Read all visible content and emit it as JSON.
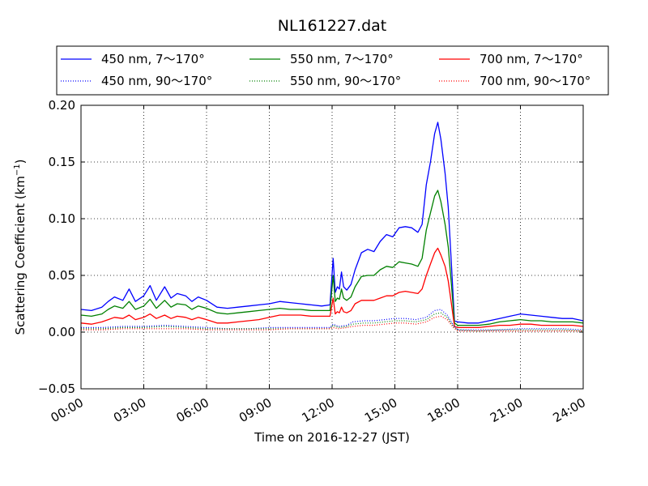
{
  "chart_data": {
    "type": "line",
    "title": "NL161227.dat",
    "xlabel": "Time on 2016-12-27 (JST)",
    "ylabel": "Scattering Coefficient (km",
    "ylabel_sup": "−1",
    "ylabel_close": ")",
    "xlim": [
      0,
      24
    ],
    "ylim": [
      -0.05,
      0.2
    ],
    "x_ticks": [
      0,
      3,
      6,
      9,
      12,
      15,
      18,
      21,
      24
    ],
    "x_tick_labels": [
      "00:00",
      "03:00",
      "06:00",
      "09:00",
      "12:00",
      "15:00",
      "18:00",
      "21:00",
      "24:00"
    ],
    "y_ticks": [
      -0.05,
      0,
      0.05,
      0.1,
      0.15,
      0.2
    ],
    "y_tick_labels": [
      "−0.05",
      "0.00",
      "0.05",
      "0.10",
      "0.15",
      "0.20"
    ],
    "grid": true,
    "legend_position": "top",
    "legend_columns": 3,
    "series": [
      {
        "name": "450 nm, 7～170°",
        "color": "#0000ff",
        "style": "solid",
        "x": [
          0,
          0.5,
          1,
          1.3,
          1.6,
          2,
          2.3,
          2.6,
          3,
          3.3,
          3.6,
          4,
          4.3,
          4.6,
          5,
          5.3,
          5.6,
          6,
          6.5,
          7,
          7.5,
          8,
          8.5,
          9,
          9.5,
          10,
          10.5,
          11,
          11.5,
          11.9,
          12.05,
          12.15,
          12.25,
          12.35,
          12.45,
          12.55,
          12.7,
          12.9,
          13.1,
          13.4,
          13.7,
          14,
          14.3,
          14.6,
          14.9,
          15.2,
          15.5,
          15.8,
          16.1,
          16.3,
          16.5,
          16.7,
          16.9,
          17.05,
          17.2,
          17.4,
          17.55,
          17.7,
          17.85,
          18,
          18.5,
          19,
          19.5,
          20,
          20.5,
          21,
          21.5,
          22,
          22.5,
          23,
          23.5,
          24
        ],
        "y": [
          0.02,
          0.019,
          0.022,
          0.027,
          0.031,
          0.028,
          0.038,
          0.027,
          0.032,
          0.041,
          0.028,
          0.04,
          0.03,
          0.034,
          0.032,
          0.027,
          0.031,
          0.028,
          0.022,
          0.021,
          0.022,
          0.023,
          0.024,
          0.025,
          0.027,
          0.026,
          0.025,
          0.024,
          0.023,
          0.024,
          0.065,
          0.035,
          0.04,
          0.038,
          0.053,
          0.04,
          0.037,
          0.042,
          0.055,
          0.07,
          0.073,
          0.071,
          0.08,
          0.086,
          0.084,
          0.092,
          0.093,
          0.092,
          0.088,
          0.095,
          0.13,
          0.15,
          0.175,
          0.185,
          0.17,
          0.14,
          0.11,
          0.06,
          0.01,
          0.009,
          0.008,
          0.008,
          0.01,
          0.012,
          0.014,
          0.016,
          0.015,
          0.014,
          0.013,
          0.012,
          0.012,
          0.01
        ]
      },
      {
        "name": "550 nm, 7～170°",
        "color": "#008000",
        "style": "solid",
        "x": [
          0,
          0.5,
          1,
          1.3,
          1.6,
          2,
          2.3,
          2.6,
          3,
          3.3,
          3.6,
          4,
          4.3,
          4.6,
          5,
          5.3,
          5.6,
          6,
          6.5,
          7,
          7.5,
          8,
          8.5,
          9,
          9.5,
          10,
          10.5,
          11,
          11.5,
          11.9,
          12.05,
          12.15,
          12.25,
          12.35,
          12.45,
          12.55,
          12.7,
          12.9,
          13.1,
          13.4,
          13.7,
          14,
          14.3,
          14.6,
          14.9,
          15.2,
          15.5,
          15.8,
          16.1,
          16.3,
          16.5,
          16.7,
          16.9,
          17.05,
          17.2,
          17.4,
          17.55,
          17.7,
          17.85,
          18,
          18.5,
          19,
          19.5,
          20,
          20.5,
          21,
          21.5,
          22,
          22.5,
          23,
          23.5,
          24
        ],
        "y": [
          0.015,
          0.014,
          0.016,
          0.02,
          0.023,
          0.021,
          0.027,
          0.02,
          0.023,
          0.029,
          0.021,
          0.028,
          0.022,
          0.025,
          0.024,
          0.02,
          0.023,
          0.021,
          0.017,
          0.016,
          0.017,
          0.018,
          0.019,
          0.02,
          0.021,
          0.02,
          0.02,
          0.019,
          0.019,
          0.019,
          0.05,
          0.027,
          0.03,
          0.029,
          0.038,
          0.03,
          0.028,
          0.031,
          0.04,
          0.049,
          0.05,
          0.05,
          0.055,
          0.058,
          0.057,
          0.062,
          0.061,
          0.06,
          0.058,
          0.065,
          0.09,
          0.105,
          0.12,
          0.125,
          0.115,
          0.095,
          0.075,
          0.042,
          0.008,
          0.006,
          0.006,
          0.006,
          0.007,
          0.009,
          0.01,
          0.011,
          0.01,
          0.01,
          0.009,
          0.009,
          0.009,
          0.008
        ]
      },
      {
        "name": "700 nm, 7～170°",
        "color": "#ff0000",
        "style": "solid",
        "x": [
          0,
          0.5,
          1,
          1.3,
          1.6,
          2,
          2.3,
          2.6,
          3,
          3.3,
          3.6,
          4,
          4.3,
          4.6,
          5,
          5.3,
          5.6,
          6,
          6.5,
          7,
          7.5,
          8,
          8.5,
          9,
          9.5,
          10,
          10.5,
          11,
          11.5,
          11.9,
          12.05,
          12.15,
          12.25,
          12.35,
          12.45,
          12.55,
          12.7,
          12.9,
          13.1,
          13.4,
          13.7,
          14,
          14.3,
          14.6,
          14.9,
          15.2,
          15.5,
          15.8,
          16.1,
          16.3,
          16.5,
          16.7,
          16.9,
          17.05,
          17.2,
          17.4,
          17.55,
          17.7,
          17.85,
          18,
          18.5,
          19,
          19.5,
          20,
          20.5,
          21,
          21.5,
          22,
          22.5,
          23,
          23.5,
          24
        ],
        "y": [
          0.008,
          0.007,
          0.009,
          0.011,
          0.013,
          0.012,
          0.015,
          0.011,
          0.013,
          0.016,
          0.012,
          0.015,
          0.012,
          0.014,
          0.013,
          0.011,
          0.013,
          0.011,
          0.008,
          0.008,
          0.009,
          0.01,
          0.011,
          0.013,
          0.015,
          0.015,
          0.015,
          0.014,
          0.014,
          0.014,
          0.03,
          0.016,
          0.018,
          0.017,
          0.022,
          0.018,
          0.017,
          0.019,
          0.025,
          0.028,
          0.028,
          0.028,
          0.03,
          0.032,
          0.032,
          0.035,
          0.036,
          0.035,
          0.034,
          0.038,
          0.05,
          0.06,
          0.07,
          0.074,
          0.068,
          0.058,
          0.045,
          0.025,
          0.005,
          0.004,
          0.004,
          0.004,
          0.005,
          0.006,
          0.006,
          0.007,
          0.007,
          0.006,
          0.006,
          0.006,
          0.006,
          0.005
        ]
      },
      {
        "name": "450 nm, 90～170°",
        "color": "#0000ff",
        "style": "dotted",
        "x": [
          0,
          1,
          2,
          3,
          4,
          5,
          6,
          7,
          8,
          9,
          10,
          11,
          11.9,
          12.05,
          12.3,
          12.7,
          13,
          13.5,
          14,
          14.5,
          15,
          15.5,
          16,
          16.5,
          16.9,
          17.2,
          17.5,
          17.8,
          18,
          19,
          20,
          21,
          22,
          23,
          24
        ],
        "y": [
          0.004,
          0.004,
          0.005,
          0.005,
          0.006,
          0.005,
          0.004,
          0.003,
          0.003,
          0.004,
          0.004,
          0.004,
          0.004,
          0.007,
          0.005,
          0.006,
          0.009,
          0.01,
          0.01,
          0.011,
          0.012,
          0.012,
          0.011,
          0.013,
          0.019,
          0.02,
          0.015,
          0.006,
          0.002,
          0.002,
          0.002,
          0.003,
          0.003,
          0.003,
          0.002
        ]
      },
      {
        "name": "550 nm, 90～170°",
        "color": "#008000",
        "style": "dotted",
        "x": [
          0,
          1,
          2,
          3,
          4,
          5,
          6,
          7,
          8,
          9,
          10,
          11,
          11.9,
          12.05,
          12.3,
          12.7,
          13,
          13.5,
          14,
          14.5,
          15,
          15.5,
          16,
          16.5,
          16.9,
          17.2,
          17.5,
          17.8,
          18,
          19,
          20,
          21,
          22,
          23,
          24
        ],
        "y": [
          0.003,
          0.003,
          0.004,
          0.004,
          0.005,
          0.004,
          0.003,
          0.003,
          0.003,
          0.003,
          0.003,
          0.003,
          0.003,
          0.006,
          0.004,
          0.005,
          0.007,
          0.008,
          0.008,
          0.009,
          0.01,
          0.01,
          0.009,
          0.011,
          0.016,
          0.017,
          0.013,
          0.005,
          0.002,
          0.001,
          0.002,
          0.002,
          0.002,
          0.002,
          0.001
        ]
      },
      {
        "name": "700 nm, 90～170°",
        "color": "#ff0000",
        "style": "dotted",
        "x": [
          0,
          1,
          2,
          3,
          4,
          5,
          6,
          7,
          8,
          9,
          10,
          11,
          11.9,
          12.05,
          12.3,
          12.7,
          13,
          13.5,
          14,
          14.5,
          15,
          15.5,
          16,
          16.5,
          16.9,
          17.2,
          17.5,
          17.8,
          18,
          19,
          20,
          21,
          22,
          23,
          24
        ],
        "y": [
          0.002,
          0.002,
          0.003,
          0.003,
          0.003,
          0.003,
          0.002,
          0.002,
          0.002,
          0.002,
          0.003,
          0.003,
          0.003,
          0.004,
          0.003,
          0.004,
          0.005,
          0.006,
          0.006,
          0.007,
          0.008,
          0.008,
          0.007,
          0.009,
          0.013,
          0.014,
          0.011,
          0.004,
          0.001,
          0.001,
          0.001,
          0.001,
          0.001,
          0.001,
          0.001
        ]
      }
    ]
  }
}
